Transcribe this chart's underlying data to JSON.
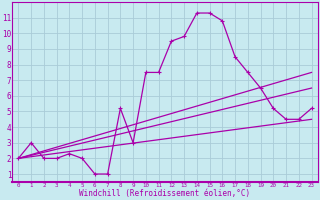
{
  "xlabel": "Windchill (Refroidissement éolien,°C)",
  "background_color": "#c8eaf0",
  "grid_color": "#aaccd8",
  "line_color": "#aa00aa",
  "xlim": [
    -0.5,
    23.5
  ],
  "ylim": [
    0.5,
    12.0
  ],
  "xticks": [
    0,
    1,
    2,
    3,
    4,
    5,
    6,
    7,
    8,
    9,
    10,
    11,
    12,
    13,
    14,
    15,
    16,
    17,
    18,
    19,
    20,
    21,
    22,
    23
  ],
  "yticks": [
    1,
    2,
    3,
    4,
    5,
    6,
    7,
    8,
    9,
    10,
    11
  ],
  "line1_x": [
    0,
    1,
    2,
    3,
    4,
    5,
    6,
    7,
    8,
    9,
    10,
    11,
    12,
    13,
    14,
    15,
    16,
    17,
    18,
    19,
    20,
    21,
    22,
    23
  ],
  "line1_y": [
    2.0,
    3.0,
    2.0,
    2.0,
    2.3,
    2.0,
    1.0,
    1.0,
    5.2,
    3.0,
    7.5,
    7.5,
    9.5,
    9.8,
    11.3,
    11.3,
    10.8,
    8.5,
    7.5,
    6.5,
    5.2,
    4.5,
    4.5,
    5.2
  ],
  "line2_x": [
    0,
    23
  ],
  "line2_y": [
    2.0,
    7.5
  ],
  "line3_x": [
    0,
    23
  ],
  "line3_y": [
    2.0,
    6.5
  ],
  "line4_x": [
    0,
    23
  ],
  "line4_y": [
    2.0,
    4.5
  ]
}
